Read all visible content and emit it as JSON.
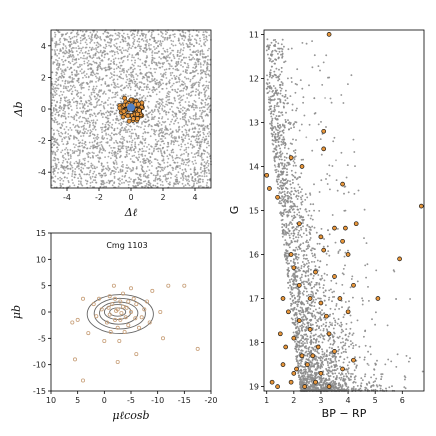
{
  "figure": {
    "panel_count": 3
  },
  "chart_data": [
    {
      "id": "spatial",
      "type": "scatter",
      "xlabel": "Δℓ",
      "ylabel": "Δb",
      "xlim": [
        -5,
        5
      ],
      "ylim": [
        -5,
        5
      ],
      "xticks": [
        -4,
        -2,
        0,
        2,
        4
      ],
      "yticks": [
        -4,
        -2,
        0,
        2,
        4
      ],
      "grid": false,
      "series": [
        {
          "role": "field",
          "color": "#8c8c8c",
          "count_approx": 3500,
          "distribution": "uniform"
        },
        {
          "role": "members",
          "color": "#e8963a",
          "edge": "#1a1a1a",
          "center": [
            0.0,
            0.0
          ],
          "radius": 0.8,
          "count_approx": 80
        },
        {
          "role": "core",
          "color": "#4f81c7",
          "center": [
            0.0,
            0.1
          ],
          "radius": 0.25
        }
      ]
    },
    {
      "id": "proper_motion",
      "type": "scatter",
      "annotation": "Cmg 1103",
      "xlabel": "μℓcosb",
      "ylabel": "μb",
      "xlim": [
        10,
        -20
      ],
      "ylim": [
        -15,
        15
      ],
      "xticks": [
        10,
        5,
        0,
        -5,
        -10,
        -15,
        -20
      ],
      "yticks": [
        -15,
        -10,
        -5,
        0,
        5,
        10,
        15
      ],
      "grid": false,
      "points_color": "#c8a07a",
      "contour_color": "#666666",
      "points": [
        [
          -2.5,
          0.5
        ],
        [
          -1.0,
          -0.5
        ],
        [
          -3.5,
          1.0
        ],
        [
          -4.0,
          -1.0
        ],
        [
          -2.0,
          -1.5
        ],
        [
          -5.0,
          0.0
        ],
        [
          -3.0,
          2.0
        ],
        [
          0.5,
          0.5
        ],
        [
          -1.5,
          1.5
        ],
        [
          -6.0,
          1.5
        ],
        [
          -4.5,
          -2.5
        ],
        [
          -2.5,
          -3.0
        ],
        [
          1.5,
          -0.8
        ],
        [
          -7.0,
          -1.0
        ],
        [
          -5.5,
          2.5
        ],
        [
          -1.0,
          3.0
        ],
        [
          2.0,
          1.5
        ],
        [
          -3.2,
          -0.2
        ],
        [
          -2.2,
          0.2
        ],
        [
          -4.2,
          0.8
        ],
        [
          -0.5,
          -2.0
        ],
        [
          -6.5,
          -3.0
        ],
        [
          -8.0,
          2.0
        ],
        [
          -8.5,
          -2.0
        ],
        [
          -12.0,
          5.0
        ],
        [
          -15.0,
          5.0
        ],
        [
          -17.5,
          -7.0
        ],
        [
          5.0,
          -1.5
        ],
        [
          6.0,
          -2.0
        ],
        [
          3.0,
          -4.0
        ],
        [
          4.0,
          2.5
        ],
        [
          -9.0,
          4.0
        ],
        [
          -10.5,
          0.0
        ],
        [
          -2.5,
          -9.5
        ],
        [
          5.5,
          -9.0
        ],
        [
          -3.8,
          -3.8
        ],
        [
          -6.0,
          -8.0
        ],
        [
          -1.8,
          5.0
        ],
        [
          -5.0,
          4.5
        ],
        [
          -2.8,
          -5.5
        ],
        [
          0.0,
          -5.5
        ],
        [
          -7.5,
          0.5
        ],
        [
          -3.5,
          3.5
        ],
        [
          -1.2,
          -3.8
        ],
        [
          1.0,
          2.5
        ],
        [
          -4.5,
          2.0
        ],
        [
          -2.0,
          2.5
        ],
        [
          -3.0,
          -1.5
        ],
        [
          -5.8,
          -1.2
        ],
        [
          -0.8,
          0.8
        ],
        [
          4.0,
          -13.0
        ],
        [
          -11.0,
          -5.0
        ]
      ],
      "contours": [
        {
          "center": [
            -2.5,
            0.0
          ],
          "rx": 1.5,
          "ry": 0.8
        },
        {
          "center": [
            -2.5,
            0.0
          ],
          "rx": 2.5,
          "ry": 1.4
        },
        {
          "center": [
            -2.7,
            -0.2
          ],
          "rx": 3.6,
          "ry": 2.1
        },
        {
          "center": [
            -2.9,
            -0.3
          ],
          "rx": 4.8,
          "ry": 2.9
        },
        {
          "center": [
            -3.0,
            -0.4
          ],
          "rx": 6.2,
          "ry": 3.7
        }
      ]
    },
    {
      "id": "cmd",
      "type": "scatter",
      "xlabel": "BP − RP",
      "ylabel": "G",
      "xlim": [
        0.9,
        6.8
      ],
      "ylim": [
        19.1,
        10.9
      ],
      "xticks": [
        1,
        2,
        3,
        4,
        5,
        6
      ],
      "yticks": [
        11,
        12,
        13,
        14,
        15,
        16,
        17,
        18,
        19
      ],
      "grid": false,
      "field_color": "#8c8c8c",
      "member_color": "#e8963a",
      "member_edge": "#1a1a1a",
      "members": [
        [
          3.3,
          11.0
        ],
        [
          3.1,
          13.2
        ],
        [
          3.1,
          13.6
        ],
        [
          1.9,
          13.8
        ],
        [
          2.3,
          14.0
        ],
        [
          3.8,
          14.4
        ],
        [
          1.0,
          14.2
        ],
        [
          1.1,
          14.5
        ],
        [
          1.4,
          14.7
        ],
        [
          6.7,
          14.9
        ],
        [
          2.2,
          15.3
        ],
        [
          3.5,
          15.4
        ],
        [
          3.9,
          15.4
        ],
        [
          4.3,
          15.3
        ],
        [
          3.0,
          15.6
        ],
        [
          3.8,
          15.7
        ],
        [
          1.9,
          16.0
        ],
        [
          3.1,
          15.9
        ],
        [
          4.0,
          16.0
        ],
        [
          5.9,
          16.1
        ],
        [
          2.0,
          16.3
        ],
        [
          2.8,
          16.4
        ],
        [
          3.5,
          16.5
        ],
        [
          2.2,
          16.7
        ],
        [
          4.2,
          16.7
        ],
        [
          1.6,
          17.0
        ],
        [
          2.6,
          17.0
        ],
        [
          3.0,
          17.1
        ],
        [
          3.7,
          17.0
        ],
        [
          5.1,
          17.0
        ],
        [
          1.8,
          17.3
        ],
        [
          2.2,
          17.5
        ],
        [
          3.2,
          17.4
        ],
        [
          4.0,
          17.3
        ],
        [
          1.5,
          17.8
        ],
        [
          2.0,
          17.9
        ],
        [
          2.6,
          17.7
        ],
        [
          3.3,
          17.8
        ],
        [
          1.7,
          18.1
        ],
        [
          2.3,
          18.3
        ],
        [
          2.9,
          18.1
        ],
        [
          3.5,
          18.2
        ],
        [
          4.2,
          18.4
        ],
        [
          1.6,
          18.5
        ],
        [
          2.0,
          18.7
        ],
        [
          2.5,
          18.5
        ],
        [
          3.0,
          18.7
        ],
        [
          3.8,
          18.6
        ],
        [
          1.4,
          19.0
        ],
        [
          1.9,
          18.9
        ],
        [
          2.4,
          19.0
        ],
        [
          2.8,
          18.9
        ],
        [
          3.3,
          19.0
        ],
        [
          1.2,
          18.9
        ],
        [
          2.1,
          18.6
        ],
        [
          2.7,
          18.3
        ]
      ]
    }
  ]
}
